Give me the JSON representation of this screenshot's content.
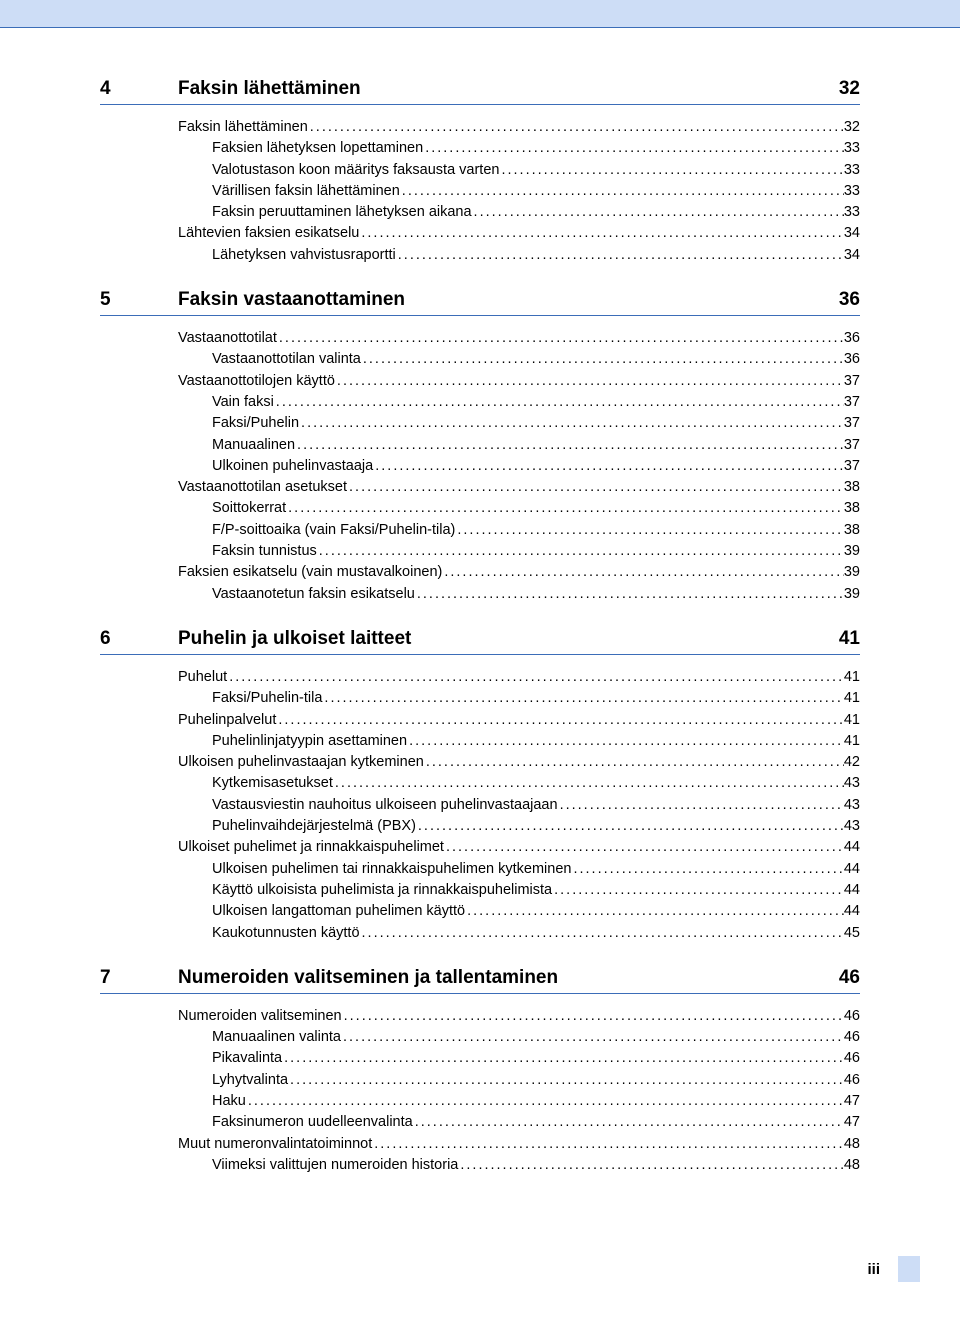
{
  "page": {
    "footer_pagenum": "iii",
    "top_band_color": "#cdddf6",
    "rule_color": "#3b6db8"
  },
  "sections": [
    {
      "num": "4",
      "title": "Faksin lähettäminen",
      "page": "32",
      "entries": [
        {
          "indent": 0,
          "label": "Faksin lähettäminen",
          "page": "32"
        },
        {
          "indent": 1,
          "label": "Faksien lähetyksen lopettaminen",
          "page": "33"
        },
        {
          "indent": 1,
          "label": "Valotustason koon määritys faksausta varten",
          "page": "33"
        },
        {
          "indent": 1,
          "label": "Värillisen faksin lähettäminen",
          "page": "33"
        },
        {
          "indent": 1,
          "label": "Faksin peruuttaminen lähetyksen aikana",
          "page": "33"
        },
        {
          "indent": 0,
          "label": "Lähtevien faksien esikatselu",
          "page": "34"
        },
        {
          "indent": 1,
          "label": "Lähetyksen vahvistusraportti",
          "page": "34"
        }
      ]
    },
    {
      "num": "5",
      "title": "Faksin vastaanottaminen",
      "page": "36",
      "entries": [
        {
          "indent": 0,
          "label": "Vastaanottotilat",
          "page": "36"
        },
        {
          "indent": 1,
          "label": "Vastaanottotilan valinta",
          "page": "36"
        },
        {
          "indent": 0,
          "label": "Vastaanottotilojen käyttö",
          "page": "37"
        },
        {
          "indent": 1,
          "label": "Vain faksi",
          "page": "37"
        },
        {
          "indent": 1,
          "label": "Faksi/Puhelin",
          "page": "37"
        },
        {
          "indent": 1,
          "label": "Manuaalinen",
          "page": "37"
        },
        {
          "indent": 1,
          "label": "Ulkoinen puhelinvastaaja",
          "page": "37"
        },
        {
          "indent": 0,
          "label": "Vastaanottotilan asetukset",
          "page": "38"
        },
        {
          "indent": 1,
          "label": "Soittokerrat",
          "page": "38"
        },
        {
          "indent": 1,
          "label": "F/P-soittoaika (vain Faksi/Puhelin-tila)",
          "page": "38"
        },
        {
          "indent": 1,
          "label": "Faksin tunnistus",
          "page": "39"
        },
        {
          "indent": 0,
          "label": "Faksien esikatselu (vain mustavalkoinen)",
          "page": "39"
        },
        {
          "indent": 1,
          "label": "Vastaanotetun faksin esikatselu",
          "page": "39"
        }
      ]
    },
    {
      "num": "6",
      "title": "Puhelin ja ulkoiset laitteet",
      "page": "41",
      "entries": [
        {
          "indent": 0,
          "label": "Puhelut",
          "page": "41"
        },
        {
          "indent": 1,
          "label": "Faksi/Puhelin-tila",
          "page": "41"
        },
        {
          "indent": 0,
          "label": "Puhelinpalvelut",
          "page": "41"
        },
        {
          "indent": 1,
          "label": "Puhelinlinjatyypin asettaminen",
          "page": "41"
        },
        {
          "indent": 0,
          "label": "Ulkoisen puhelinvastaajan kytkeminen",
          "page": "42"
        },
        {
          "indent": 1,
          "label": "Kytkemisasetukset",
          "page": "43"
        },
        {
          "indent": 1,
          "label": "Vastausviestin nauhoitus ulkoiseen puhelinvastaajaan",
          "page": "43"
        },
        {
          "indent": 1,
          "label": "Puhelinvaihdejärjestelmä (PBX)",
          "page": "43"
        },
        {
          "indent": 0,
          "label": "Ulkoiset puhelimet ja rinnakkaispuhelimet",
          "page": "44"
        },
        {
          "indent": 1,
          "label": "Ulkoisen puhelimen tai rinnakkaispuhelimen kytkeminen",
          "page": "44"
        },
        {
          "indent": 1,
          "label": "Käyttö ulkoisista puhelimista ja rinnakkaispuhelimista",
          "page": "44"
        },
        {
          "indent": 1,
          "label": "Ulkoisen langattoman puhelimen käyttö",
          "page": "44"
        },
        {
          "indent": 1,
          "label": "Kaukotunnusten käyttö",
          "page": "45"
        }
      ]
    },
    {
      "num": "7",
      "title": "Numeroiden valitseminen ja tallentaminen",
      "page": "46",
      "entries": [
        {
          "indent": 0,
          "label": "Numeroiden valitseminen",
          "page": "46"
        },
        {
          "indent": 1,
          "label": "Manuaalinen valinta",
          "page": "46"
        },
        {
          "indent": 1,
          "label": "Pikavalinta",
          "page": "46"
        },
        {
          "indent": 1,
          "label": "Lyhytvalinta",
          "page": "46"
        },
        {
          "indent": 1,
          "label": "Haku",
          "page": "47"
        },
        {
          "indent": 1,
          "label": "Faksinumeron uudelleenvalinta",
          "page": "47"
        },
        {
          "indent": 0,
          "label": "Muut numeronvalintatoiminnot",
          "page": "48"
        },
        {
          "indent": 1,
          "label": "Viimeksi valittujen numeroiden historia",
          "page": "48"
        }
      ]
    }
  ]
}
